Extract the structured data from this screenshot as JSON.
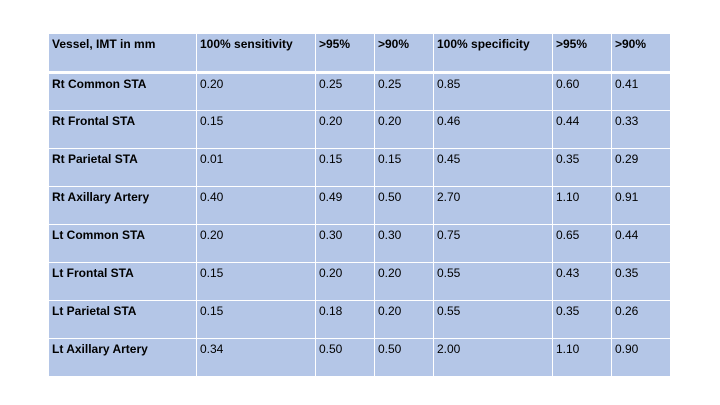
{
  "table": {
    "headers": [
      "Vessel, IMT in mm",
      "100% sensitivity",
      ">95%",
      ">90%",
      "100% specificity",
      ">95%",
      ">90%"
    ],
    "rows": [
      {
        "vessel": "Rt Common STA",
        "values": [
          "0.20",
          "0.25",
          "0.25",
          "0.85",
          "0.60",
          "0.41"
        ]
      },
      {
        "vessel": "Rt Frontal STA",
        "values": [
          "0.15",
          "0.20",
          "0.20",
          "0.46",
          "0.44",
          "0.33"
        ]
      },
      {
        "vessel": "Rt Parietal STA",
        "values": [
          "0.01",
          "0.15",
          "0.15",
          "0.45",
          "0.35",
          "0.29"
        ]
      },
      {
        "vessel": "Rt Axillary Artery",
        "values": [
          "0.40",
          "0.49",
          "0.50",
          "2.70",
          "1.10",
          "0.91"
        ]
      },
      {
        "vessel": "Lt Common STA",
        "values": [
          "0.20",
          "0.30",
          "0.30",
          "0.75",
          "0.65",
          "0.44"
        ]
      },
      {
        "vessel": "Lt Frontal STA",
        "values": [
          "0.15",
          "0.20",
          "0.20",
          "0.55",
          "0.43",
          "0.35"
        ]
      },
      {
        "vessel": "Lt Parietal STA",
        "values": [
          "0.15",
          "0.18",
          "0.20",
          "0.55",
          "0.35",
          "0.26"
        ]
      },
      {
        "vessel": "Lt Axillary Artery",
        "values": [
          "0.34",
          "0.50",
          "0.50",
          "2.00",
          "1.10",
          "0.90"
        ]
      }
    ]
  },
  "colors": {
    "cell_fill": "#b4c6e7",
    "grid_line": "#ffffff",
    "text": "#000000"
  }
}
